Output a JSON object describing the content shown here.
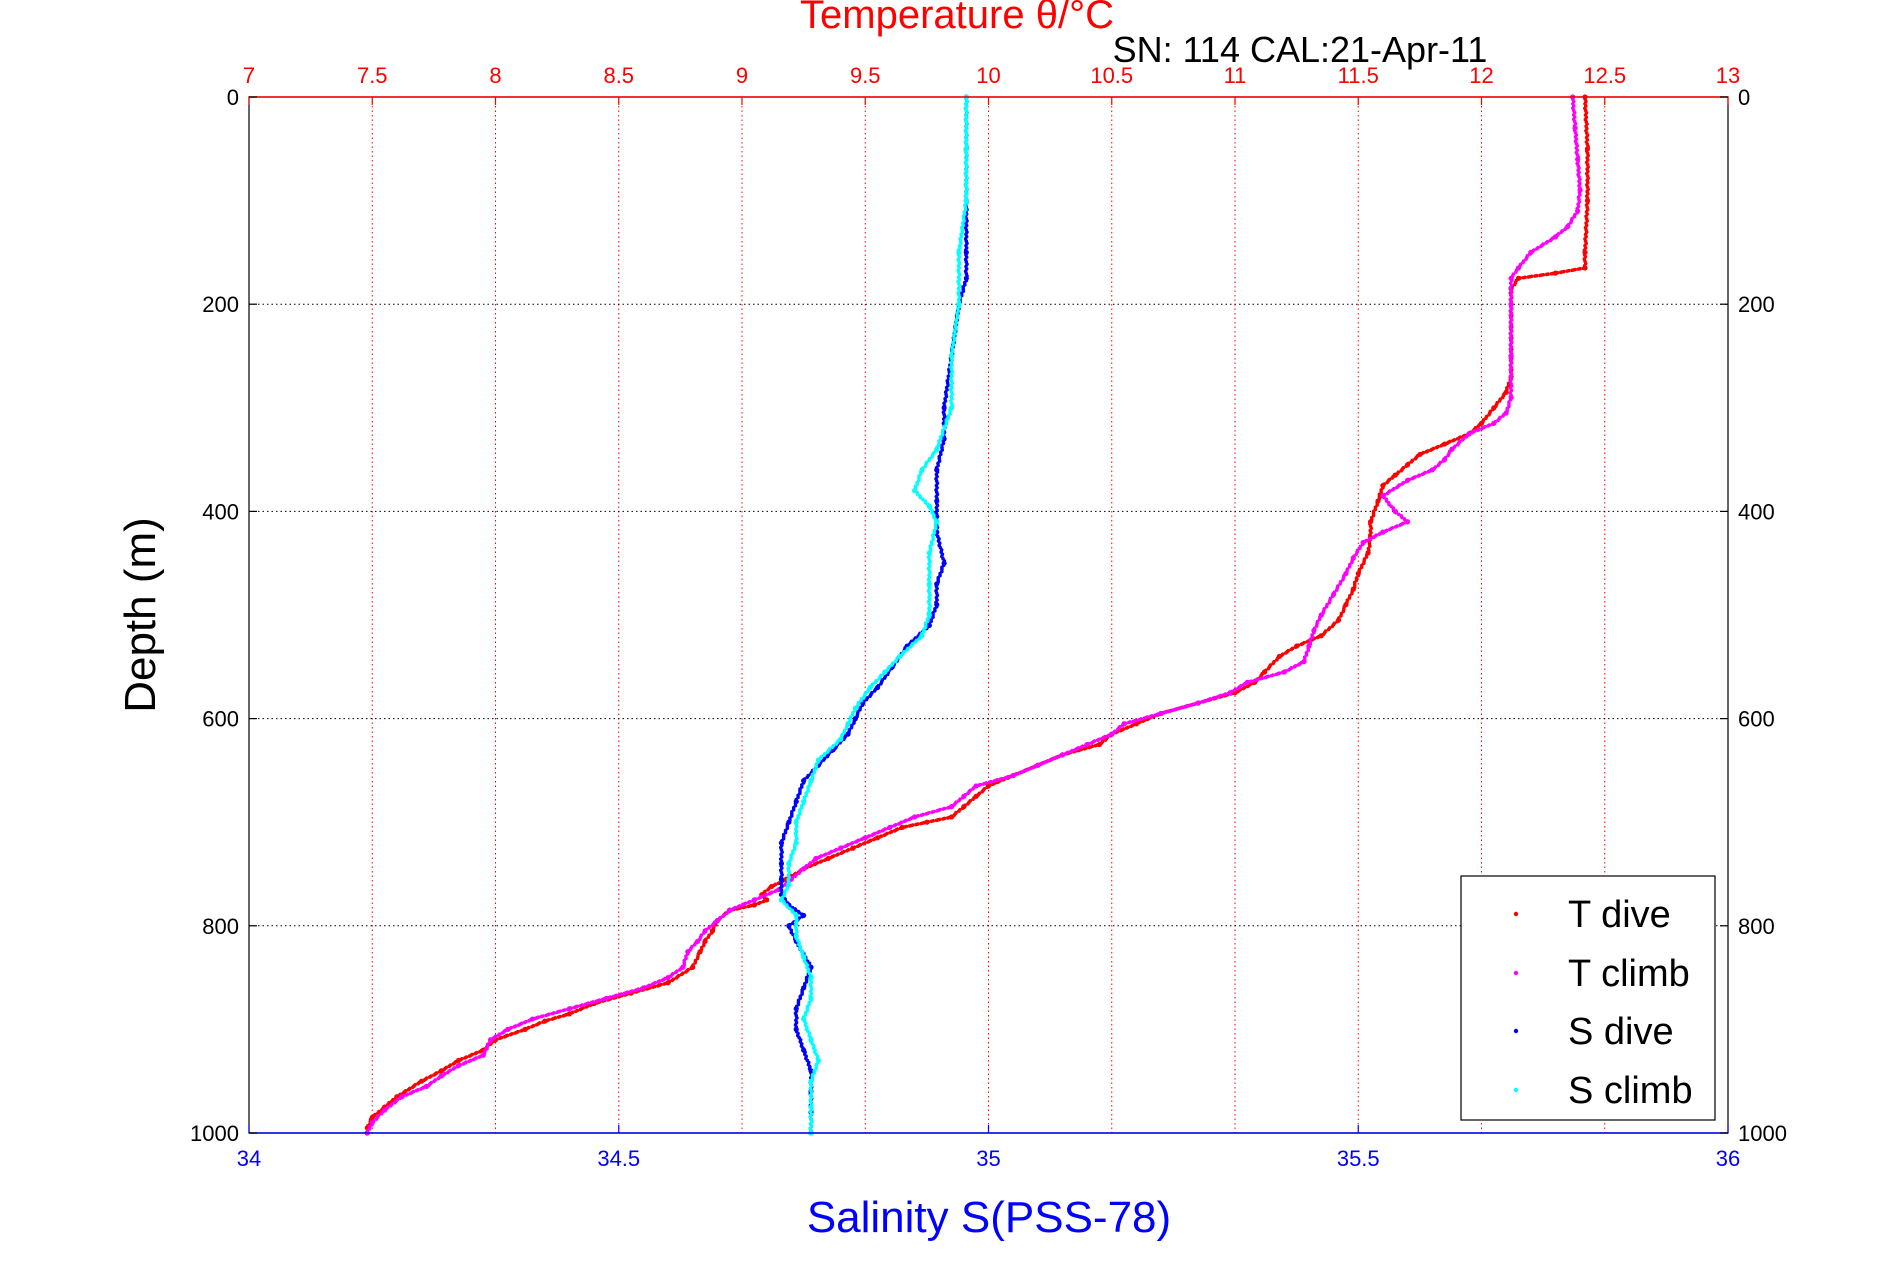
{
  "chart_data": {
    "type": "scatter",
    "title": "Temperature θ/°C",
    "subtitle": "SN: 114  CAL:21-Apr-11",
    "xlabel_top": "Temperature θ/°C",
    "xlabel_bottom": "Salinity S(PSS-78)",
    "ylabel": "Depth (m)",
    "x_top_range": [
      7,
      13
    ],
    "x_bottom_range": [
      34,
      36
    ],
    "y_range": [
      0,
      1000
    ],
    "y_reversed": true,
    "x_top_ticks": [
      "7",
      "7.5",
      "8",
      "8.5",
      "9",
      "9.5",
      "10",
      "10.5",
      "11",
      "11.5",
      "12",
      "12.5",
      "13"
    ],
    "x_bottom_ticks": [
      "34",
      "34.5",
      "35",
      "35.5",
      "36"
    ],
    "y_ticks": [
      "0",
      "200",
      "400",
      "600",
      "800",
      "1000"
    ],
    "grid": true,
    "legend_position": "bottom-right",
    "series": [
      {
        "name": "T dive",
        "axis": "top",
        "color": "#ff0000",
        "points": [
          [
            12.42,
            0
          ],
          [
            12.43,
            50
          ],
          [
            12.43,
            100
          ],
          [
            12.42,
            150
          ],
          [
            12.42,
            165
          ],
          [
            12.3,
            170
          ],
          [
            12.15,
            175
          ],
          [
            12.12,
            185
          ],
          [
            12.12,
            200
          ],
          [
            12.12,
            250
          ],
          [
            12.12,
            270
          ],
          [
            12.1,
            285
          ],
          [
            12.05,
            300
          ],
          [
            12.0,
            315
          ],
          [
            11.95,
            325
          ],
          [
            11.85,
            335
          ],
          [
            11.75,
            345
          ],
          [
            11.7,
            355
          ],
          [
            11.65,
            365
          ],
          [
            11.6,
            375
          ],
          [
            11.58,
            390
          ],
          [
            11.55,
            410
          ],
          [
            11.55,
            425
          ],
          [
            11.54,
            440
          ],
          [
            11.5,
            460
          ],
          [
            11.48,
            475
          ],
          [
            11.45,
            490
          ],
          [
            11.42,
            505
          ],
          [
            11.35,
            520
          ],
          [
            11.25,
            530
          ],
          [
            11.18,
            540
          ],
          [
            11.12,
            555
          ],
          [
            11.08,
            565
          ],
          [
            11.0,
            575
          ],
          [
            10.85,
            585
          ],
          [
            10.7,
            595
          ],
          [
            10.6,
            605
          ],
          [
            10.5,
            615
          ],
          [
            10.45,
            625
          ],
          [
            10.3,
            635
          ],
          [
            10.2,
            645
          ],
          [
            10.1,
            655
          ],
          [
            10.0,
            665
          ],
          [
            9.95,
            675
          ],
          [
            9.9,
            685
          ],
          [
            9.85,
            695
          ],
          [
            9.75,
            700
          ],
          [
            9.65,
            705
          ],
          [
            9.55,
            715
          ],
          [
            9.45,
            725
          ],
          [
            9.35,
            735
          ],
          [
            9.25,
            745
          ],
          [
            9.18,
            755
          ],
          [
            9.12,
            762
          ],
          [
            9.08,
            770
          ],
          [
            9.1,
            775
          ],
          [
            9.05,
            780
          ],
          [
            8.95,
            785
          ],
          [
            8.9,
            795
          ],
          [
            8.88,
            805
          ],
          [
            8.85,
            815
          ],
          [
            8.83,
            825
          ],
          [
            8.8,
            840
          ],
          [
            8.7,
            855
          ],
          [
            8.55,
            865
          ],
          [
            8.4,
            875
          ],
          [
            8.3,
            885
          ],
          [
            8.2,
            892
          ],
          [
            8.12,
            900
          ],
          [
            8.0,
            910
          ],
          [
            7.95,
            920
          ],
          [
            7.85,
            930
          ],
          [
            7.78,
            940
          ],
          [
            7.7,
            950
          ],
          [
            7.6,
            965
          ],
          [
            7.55,
            975
          ],
          [
            7.5,
            985
          ],
          [
            7.48,
            995
          ],
          [
            7.48,
            1000
          ]
        ]
      },
      {
        "name": "T climb",
        "axis": "top",
        "color": "#ff00ff",
        "points": [
          [
            12.37,
            0
          ],
          [
            12.38,
            30
          ],
          [
            12.39,
            60
          ],
          [
            12.4,
            90
          ],
          [
            12.39,
            110
          ],
          [
            12.35,
            125
          ],
          [
            12.3,
            135
          ],
          [
            12.2,
            150
          ],
          [
            12.15,
            165
          ],
          [
            12.12,
            175
          ],
          [
            12.12,
            200
          ],
          [
            12.12,
            250
          ],
          [
            12.12,
            290
          ],
          [
            12.1,
            305
          ],
          [
            12.05,
            315
          ],
          [
            11.95,
            325
          ],
          [
            11.88,
            340
          ],
          [
            11.85,
            350
          ],
          [
            11.8,
            360
          ],
          [
            11.7,
            370
          ],
          [
            11.6,
            385
          ],
          [
            11.65,
            400
          ],
          [
            11.7,
            410
          ],
          [
            11.6,
            420
          ],
          [
            11.52,
            430
          ],
          [
            11.48,
            445
          ],
          [
            11.45,
            460
          ],
          [
            11.4,
            480
          ],
          [
            11.35,
            500
          ],
          [
            11.32,
            515
          ],
          [
            11.3,
            530
          ],
          [
            11.28,
            545
          ],
          [
            11.2,
            555
          ],
          [
            11.05,
            565
          ],
          [
            10.98,
            575
          ],
          [
            10.85,
            585
          ],
          [
            10.7,
            595
          ],
          [
            10.55,
            605
          ],
          [
            10.5,
            615
          ],
          [
            10.4,
            625
          ],
          [
            10.3,
            635
          ],
          [
            10.2,
            645
          ],
          [
            10.1,
            655
          ],
          [
            9.95,
            665
          ],
          [
            9.9,
            675
          ],
          [
            9.85,
            685
          ],
          [
            9.7,
            695
          ],
          [
            9.6,
            705
          ],
          [
            9.5,
            715
          ],
          [
            9.4,
            725
          ],
          [
            9.3,
            735
          ],
          [
            9.25,
            745
          ],
          [
            9.2,
            755
          ],
          [
            9.15,
            765
          ],
          [
            9.05,
            775
          ],
          [
            8.95,
            785
          ],
          [
            8.9,
            795
          ],
          [
            8.85,
            805
          ],
          [
            8.82,
            815
          ],
          [
            8.78,
            825
          ],
          [
            8.76,
            840
          ],
          [
            8.7,
            850
          ],
          [
            8.6,
            860
          ],
          [
            8.45,
            870
          ],
          [
            8.3,
            880
          ],
          [
            8.15,
            890
          ],
          [
            8.05,
            900
          ],
          [
            7.98,
            910
          ],
          [
            7.95,
            925
          ],
          [
            7.85,
            935
          ],
          [
            7.78,
            945
          ],
          [
            7.72,
            955
          ],
          [
            7.62,
            965
          ],
          [
            7.55,
            978
          ],
          [
            7.5,
            990
          ],
          [
            7.48,
            1000
          ]
        ]
      },
      {
        "name": "S dive",
        "axis": "bottom",
        "color": "#0000ff",
        "points": [
          [
            34.97,
            0
          ],
          [
            34.97,
            50
          ],
          [
            34.97,
            100
          ],
          [
            34.97,
            150
          ],
          [
            34.97,
            175
          ],
          [
            34.96,
            200
          ],
          [
            34.95,
            250
          ],
          [
            34.94,
            300
          ],
          [
            34.94,
            330
          ],
          [
            34.93,
            360
          ],
          [
            34.93,
            390
          ],
          [
            34.93,
            420
          ],
          [
            34.94,
            450
          ],
          [
            34.93,
            470
          ],
          [
            34.93,
            490
          ],
          [
            34.92,
            510
          ],
          [
            34.89,
            530
          ],
          [
            34.87,
            550
          ],
          [
            34.85,
            570
          ],
          [
            34.83,
            585
          ],
          [
            34.82,
            600
          ],
          [
            34.81,
            615
          ],
          [
            34.79,
            630
          ],
          [
            34.77,
            645
          ],
          [
            34.75,
            660
          ],
          [
            34.74,
            680
          ],
          [
            34.73,
            700
          ],
          [
            34.72,
            720
          ],
          [
            34.72,
            740
          ],
          [
            34.72,
            755
          ],
          [
            34.72,
            770
          ],
          [
            34.73,
            780
          ],
          [
            34.75,
            790
          ],
          [
            34.73,
            800
          ],
          [
            34.74,
            815
          ],
          [
            34.76,
            840
          ],
          [
            34.75,
            860
          ],
          [
            34.74,
            880
          ],
          [
            34.74,
            900
          ],
          [
            34.75,
            920
          ],
          [
            34.76,
            940
          ],
          [
            34.76,
            960
          ],
          [
            34.76,
            980
          ],
          [
            34.76,
            1000
          ]
        ]
      },
      {
        "name": "S climb",
        "axis": "bottom",
        "color": "#00ffff",
        "points": [
          [
            34.97,
            0
          ],
          [
            34.97,
            50
          ],
          [
            34.97,
            100
          ],
          [
            34.96,
            150
          ],
          [
            34.96,
            200
          ],
          [
            34.95,
            250
          ],
          [
            34.95,
            300
          ],
          [
            34.93,
            340
          ],
          [
            34.91,
            360
          ],
          [
            34.9,
            380
          ],
          [
            34.92,
            395
          ],
          [
            34.93,
            410
          ],
          [
            34.92,
            440
          ],
          [
            34.92,
            470
          ],
          [
            34.92,
            500
          ],
          [
            34.91,
            520
          ],
          [
            34.88,
            540
          ],
          [
            34.86,
            555
          ],
          [
            34.84,
            570
          ],
          [
            34.82,
            590
          ],
          [
            34.81,
            605
          ],
          [
            34.8,
            620
          ],
          [
            34.77,
            640
          ],
          [
            34.76,
            660
          ],
          [
            34.75,
            680
          ],
          [
            34.74,
            700
          ],
          [
            34.74,
            720
          ],
          [
            34.73,
            740
          ],
          [
            34.73,
            760
          ],
          [
            34.72,
            775
          ],
          [
            34.74,
            790
          ],
          [
            34.74,
            810
          ],
          [
            34.75,
            830
          ],
          [
            34.76,
            850
          ],
          [
            34.76,
            870
          ],
          [
            34.75,
            890
          ],
          [
            34.76,
            910
          ],
          [
            34.77,
            930
          ],
          [
            34.76,
            950
          ],
          [
            34.76,
            975
          ],
          [
            34.76,
            1000
          ]
        ]
      }
    ]
  }
}
